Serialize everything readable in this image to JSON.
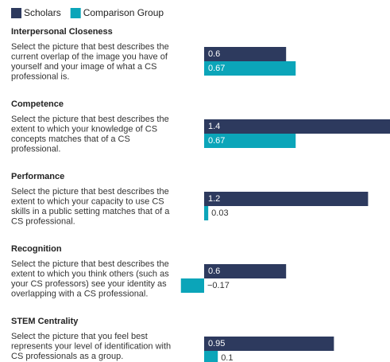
{
  "chart_data": {
    "type": "bar",
    "categories": [
      "Interpersonal Closeness",
      "Competence",
      "Performance",
      "Recognition",
      "STEM Centrality"
    ],
    "descriptions": [
      [
        "Select the picture that best describes the",
        "current overlap of the image you have of",
        "yourself and your image of what a CS",
        "professional is."
      ],
      [
        "Select the picture that best describes the",
        "extent to which your knowledge of CS",
        "concepts matches that of a CS",
        "professional."
      ],
      [
        "Select the picture that best describes the",
        "extent to which your capacity to use CS",
        "skills in a public setting matches that of a",
        "CS professional."
      ],
      [
        "Select the picture that best describes the",
        "extent to which you think others (such as",
        "your CS professors) see your identity as",
        "overlapping with a CS professional."
      ],
      [
        "Select the picture that you feel best",
        "represents your level of identification with",
        "CS professionals as a group."
      ]
    ],
    "series": [
      {
        "name": "Scholars",
        "color": "#2d3a5e",
        "values": [
          0.6,
          1.4,
          1.2,
          0.6,
          0.95
        ],
        "value_labels": [
          "0.6",
          "1.4",
          "1.2",
          "0.6",
          "0.95"
        ]
      },
      {
        "name": "Comparison Group",
        "color": "#0ba5b9",
        "values": [
          0.67,
          0.67,
          0.03,
          -0.17,
          0.1
        ],
        "value_labels": [
          "0.67",
          "0.67",
          "0.03",
          "−0.17",
          "0.1"
        ]
      }
    ]
  }
}
